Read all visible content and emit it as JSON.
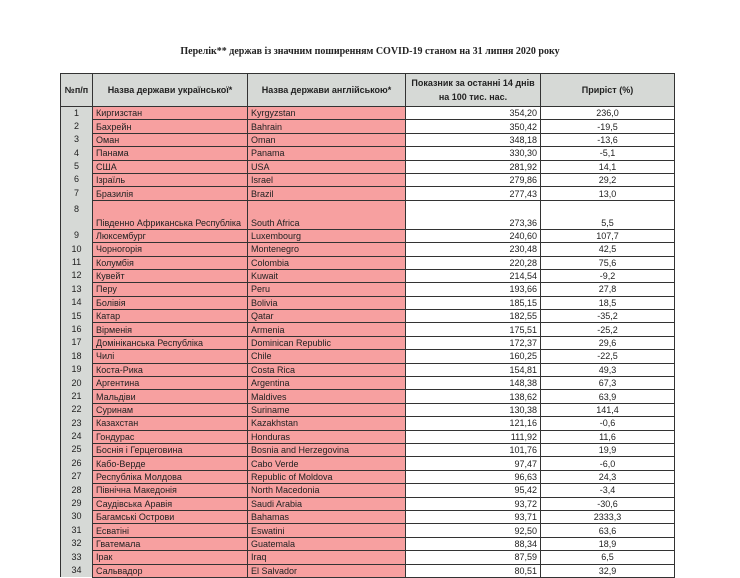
{
  "title": "Перелік** держав із значним поширенням COVID-19 станом на 31 липня 2020 року",
  "headers": {
    "num": "№п/п",
    "ukr": "Назва держави української*",
    "eng": "Назва держави англійською*",
    "indicator": "Показник за останні 14 днів на 100 тис. нас.",
    "growth": "Приріст (%)"
  },
  "colors": {
    "header_bg": "#d6d9d6",
    "highlight": "#f7a0a0"
  },
  "rows": [
    [
      "1",
      "Киргизстан",
      "Kyrgyzstan",
      "354,20",
      "236,0"
    ],
    [
      "2",
      "Бахрейн",
      "Bahrain",
      "350,42",
      "-19,5"
    ],
    [
      "3",
      "Оман",
      "Oman",
      "348,18",
      "-13,6"
    ],
    [
      "4",
      "Панама",
      "Panama",
      "330,30",
      "-5,1"
    ],
    [
      "5",
      "США",
      "USA",
      "281,92",
      "14,1"
    ],
    [
      "6",
      "Ізраїль",
      "Israel",
      "279,86",
      "29,2"
    ],
    [
      "7",
      "Бразилія",
      "Brazil",
      "277,43",
      "13,0"
    ],
    [
      "8",
      "Південно Африканська Республіка",
      "South Africa",
      "273,36",
      "5,5"
    ],
    [
      "9",
      "Люксембург",
      "Luxembourg",
      "240,60",
      "107,7"
    ],
    [
      "10",
      "Чорногорія",
      "Montenegro",
      "230,48",
      "42,5"
    ],
    [
      "11",
      "Колумбія",
      "Colombia",
      "220,28",
      "75,6"
    ],
    [
      "12",
      "Кувейт",
      "Kuwait",
      "214,54",
      "-9,2"
    ],
    [
      "13",
      "Перу",
      "Peru",
      "193,66",
      "27,8"
    ],
    [
      "14",
      "Болівія",
      "Bolivia",
      "185,15",
      "18,5"
    ],
    [
      "15",
      "Катар",
      "Qatar",
      "182,55",
      "-35,2"
    ],
    [
      "16",
      "Вірменія",
      "Armenia",
      "175,51",
      "-25,2"
    ],
    [
      "17",
      "Домініканська Республіка",
      "Dominican Republic",
      "172,37",
      "29,6"
    ],
    [
      "18",
      "Чилі",
      "Chile",
      "160,25",
      "-22,5"
    ],
    [
      "19",
      "Коста-Рика",
      "Costa Rica",
      "154,81",
      "49,3"
    ],
    [
      "20",
      "Аргентина",
      "Argentina",
      "148,38",
      "67,3"
    ],
    [
      "21",
      "Мальдіви",
      "Maldives",
      "138,62",
      "63,9"
    ],
    [
      "22",
      "Суринам",
      "Suriname",
      "130,38",
      "141,4"
    ],
    [
      "23",
      "Казахстан",
      "Kazakhstan",
      "121,16",
      "-0,6"
    ],
    [
      "24",
      "Гондурас",
      "Honduras",
      "111,92",
      "11,6"
    ],
    [
      "25",
      "Боснія і Герцеговина",
      "Bosnia and Herzegovina",
      "101,76",
      "19,9"
    ],
    [
      "26",
      "Кабо-Верде",
      "Cabo Verde",
      "97,47",
      "-6,0"
    ],
    [
      "27",
      "Республіка Молдова",
      "Republic of Moldova",
      "96,63",
      "24,3"
    ],
    [
      "28",
      "Північна Македонія",
      "North Macedonia",
      "95,42",
      "-3,4"
    ],
    [
      "29",
      "Саудівська Аравія",
      "Saudi Arabia",
      "93,72",
      "-30,6"
    ],
    [
      "30",
      "Багамські Острови",
      "Bahamas",
      "93,71",
      "2333,3"
    ],
    [
      "31",
      "Есватіні",
      "Eswatini",
      "92,50",
      "63,6"
    ],
    [
      "32",
      "Гватемала",
      "Guatemala",
      "88,34",
      "18,9"
    ],
    [
      "33",
      "Ірак",
      "Iraq",
      "87,59",
      "6,5"
    ],
    [
      "34",
      "Сальвадор",
      "El Salvador",
      "80,51",
      "32,9"
    ]
  ]
}
